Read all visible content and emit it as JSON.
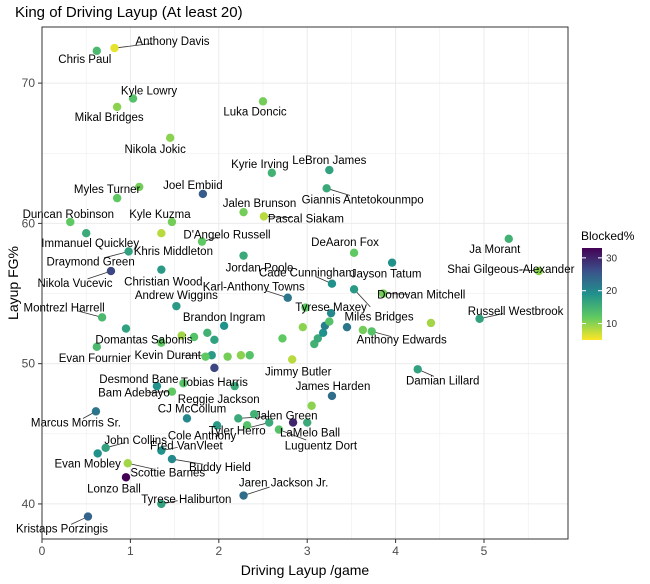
{
  "chart_data": {
    "type": "scatter",
    "title": "King of Driving Layup (At least 20)",
    "xlabel": "Driving Layup /game",
    "ylabel": "Layup FG%",
    "xlim": [
      0,
      5.95
    ],
    "ylim": [
      37.5,
      74
    ],
    "xticks": [
      0,
      1,
      2,
      3,
      4,
      5
    ],
    "yticks": [
      40,
      50,
      60,
      70
    ],
    "grid": true,
    "legend": {
      "title": "Blocked%",
      "position": "right",
      "range": [
        5,
        33
      ],
      "ticks": [
        10,
        20,
        30
      ],
      "colormap": "viridis-reversed"
    },
    "points": [
      {
        "name": "Anthony Davis",
        "x": 0.82,
        "y": 72.5,
        "blocked": 6,
        "label_dx": 58,
        "label_dy": -7
      },
      {
        "name": "Chris Paul",
        "x": 0.62,
        "y": 72.3,
        "blocked": 14,
        "label_dx": -12,
        "label_dy": 8
      },
      {
        "name": "Kyle Lowry",
        "x": 1.03,
        "y": 68.9,
        "blocked": 13,
        "label_dx": 16,
        "label_dy": -8
      },
      {
        "name": "Mikal Bridges",
        "x": 0.85,
        "y": 68.3,
        "blocked": 10,
        "label_dx": -8,
        "label_dy": 10
      },
      {
        "name": "Luka Doncic",
        "x": 2.5,
        "y": 68.7,
        "blocked": 11,
        "label_dx": -8,
        "label_dy": 10
      },
      {
        "name": "Nikola Jokic",
        "x": 1.45,
        "y": 66.1,
        "blocked": 10,
        "label_dx": -15,
        "label_dy": 11
      },
      {
        "name": "Kyrie Irving",
        "x": 2.6,
        "y": 63.6,
        "blocked": 15,
        "label_dx": -12,
        "label_dy": -9
      },
      {
        "name": "LeBron James",
        "x": 3.25,
        "y": 63.8,
        "blocked": 17,
        "label_dx": 0,
        "label_dy": -10
      },
      {
        "name": "Giannis Antetokounmpo",
        "x": 3.22,
        "y": 62.5,
        "blocked": 16,
        "label_dx": 36,
        "label_dy": 11
      },
      {
        "name": "Myles Turner",
        "x": 0.85,
        "y": 61.8,
        "blocked": 12,
        "label_dx": -10,
        "label_dy": -9
      },
      {
        "name": "Joel Embiid",
        "x": 1.82,
        "y": 62.1,
        "blocked": 25,
        "label_dx": -10,
        "label_dy": -9
      },
      {
        "name": "Jalen Brunson",
        "x": 2.28,
        "y": 60.8,
        "blocked": 11,
        "label_dx": 16,
        "label_dy": -9
      },
      {
        "name": "Pascal Siakam",
        "x": 2.51,
        "y": 60.5,
        "blocked": 8,
        "label_dx": 42,
        "label_dy": 2
      },
      {
        "name": "Duncan Robinson",
        "x": 0.32,
        "y": 60.1,
        "blocked": 12,
        "label_dx": -2,
        "label_dy": -8
      },
      {
        "name": "Kyle Kuzma",
        "x": 1.47,
        "y": 60.1,
        "blocked": 11,
        "label_dx": -12,
        "label_dy": -8
      },
      {
        "name": "Khris Middleton",
        "x": 1.35,
        "y": 59.3,
        "blocked": 8,
        "label_dx": 12,
        "label_dy": 18
      },
      {
        "name": "D'Angelo Russell",
        "x": 1.81,
        "y": 58.7,
        "blocked": 12,
        "label_dx": 25,
        "label_dy": -7
      },
      {
        "name": "Immanuel Quickley",
        "x": 0.5,
        "y": 59.3,
        "blocked": 16,
        "label_dx": 4,
        "label_dy": 10
      },
      {
        "name": "Jordan Poole",
        "x": 2.28,
        "y": 57.7,
        "blocked": 16,
        "label_dx": 16,
        "label_dy": 12
      },
      {
        "name": "DeAaron Fox",
        "x": 3.53,
        "y": 57.9,
        "blocked": 12,
        "label_dx": -9,
        "label_dy": -11
      },
      {
        "name": "Ja Morant",
        "x": 5.28,
        "y": 58.9,
        "blocked": 15,
        "label_dx": -14,
        "label_dy": 10
      },
      {
        "name": "Draymond Green",
        "x": 0.98,
        "y": 58.0,
        "blocked": 17,
        "label_dx": -38,
        "label_dy": 10
      },
      {
        "name": "Nikola Vucevic",
        "x": 0.78,
        "y": 56.6,
        "blocked": 27,
        "label_dx": -36,
        "label_dy": 12
      },
      {
        "name": "Christian Wood",
        "x": 1.35,
        "y": 56.7,
        "blocked": 18,
        "label_dx": 2,
        "label_dy": 12
      },
      {
        "name": "Cade Cunningham",
        "x": 3.28,
        "y": 55.7,
        "blocked": 19,
        "label_dx": -25,
        "label_dy": -11
      },
      {
        "name": "Jayson Tatum",
        "x": 3.96,
        "y": 57.2,
        "blocked": 19,
        "label_dx": -6,
        "label_dy": 11
      },
      {
        "name": "Shai Gilgeous-Alexander",
        "x": 5.62,
        "y": 56.6,
        "blocked": 10,
        "label_dx": -28,
        "label_dy": -2
      },
      {
        "name": "Karl-Anthony Towns",
        "x": 2.78,
        "y": 54.7,
        "blocked": 22,
        "label_dx": -34,
        "label_dy": -11
      },
      {
        "name": "Andrew Wiggins",
        "x": 1.52,
        "y": 54.1,
        "blocked": 18,
        "label_dx": 0,
        "label_dy": -11
      },
      {
        "name": "Donovan Mitchell",
        "x": 3.86,
        "y": 55.0,
        "blocked": 11,
        "label_dx": 38,
        "label_dy": 1
      },
      {
        "name": "Miles Bridges",
        "x": 3.53,
        "y": 55.3,
        "blocked": 18,
        "label_dx": 25,
        "label_dy": 27
      },
      {
        "name": "Tyrese Maxey",
        "x": 3.27,
        "y": 53.6,
        "blocked": 20,
        "label_dx": 0,
        "label_dy": -6
      },
      {
        "name": "Montrezl Harrell",
        "x": 0.68,
        "y": 53.3,
        "blocked": 14,
        "label_dx": -38,
        "label_dy": -10
      },
      {
        "name": "Russell Westbrook",
        "x": 4.95,
        "y": 53.2,
        "blocked": 17,
        "label_dx": 36,
        "label_dy": -8
      },
      {
        "name": "Brandon Ingram",
        "x": 2.06,
        "y": 52.7,
        "blocked": 19,
        "label_dx": 0,
        "label_dy": -9
      },
      {
        "name": "Anthony Edwards",
        "x": 3.73,
        "y": 52.3,
        "blocked": 13,
        "label_dx": 30,
        "label_dy": 8
      },
      {
        "name": "Domantas Sabonis",
        "x": 0.95,
        "y": 52.5,
        "blocked": 17,
        "label_dx": 18,
        "label_dy": 11
      },
      {
        "name": "Evan Fournier",
        "x": 0.62,
        "y": 51.2,
        "blocked": 14,
        "label_dx": -2,
        "label_dy": 11
      },
      {
        "name": "Kevin Durant",
        "x": 1.92,
        "y": 50.6,
        "blocked": 18,
        "label_dx": -44,
        "label_dy": 0
      },
      {
        "name": "Jimmy Butler",
        "x": 2.83,
        "y": 50.3,
        "blocked": 8,
        "label_dx": 6,
        "label_dy": 12
      },
      {
        "name": "Tobias Harris",
        "x": 1.95,
        "y": 49.7,
        "blocked": 27,
        "label_dx": 0,
        "label_dy": 14
      },
      {
        "name": "Damian Lillard",
        "x": 4.25,
        "y": 49.6,
        "blocked": 17,
        "label_dx": 25,
        "label_dy": 11
      },
      {
        "name": "Desmond Bane",
        "x": 1.3,
        "y": 48.4,
        "blocked": 19,
        "label_dx": -18,
        "label_dy": -7
      },
      {
        "name": "Bam Adebayo",
        "x": 1.47,
        "y": 48.0,
        "blocked": 12,
        "label_dx": -38,
        "label_dy": 1
      },
      {
        "name": "Reggie Jackson",
        "x": 2.18,
        "y": 48.4,
        "blocked": 16,
        "label_dx": -16,
        "label_dy": 13
      },
      {
        "name": "James Harden",
        "x": 3.28,
        "y": 47.7,
        "blocked": 23,
        "label_dx": 1,
        "label_dy": -10
      },
      {
        "name": "Marcus Morris Sr.",
        "x": 0.61,
        "y": 46.6,
        "blocked": 22,
        "label_dx": -20,
        "label_dy": 11
      },
      {
        "name": "CJ McCollum",
        "x": 1.64,
        "y": 46.1,
        "blocked": 20,
        "label_dx": 5,
        "label_dy": -10
      },
      {
        "name": "Jalen Green",
        "x": 2.22,
        "y": 46.1,
        "blocked": 16,
        "label_dx": 48,
        "label_dy": -3
      },
      {
        "name": "Cole Anthony",
        "x": 1.98,
        "y": 45.6,
        "blocked": 18,
        "label_dx": -15,
        "label_dy": 10
      },
      {
        "name": "Tyler Herro",
        "x": 2.57,
        "y": 45.8,
        "blocked": 16,
        "label_dx": -32,
        "label_dy": 8
      },
      {
        "name": "LaMelo Ball",
        "x": 2.84,
        "y": 45.8,
        "blocked": 30,
        "label_dx": 17,
        "label_dy": 10
      },
      {
        "name": "Luguentz Dort",
        "x": 2.68,
        "y": 45.3,
        "blocked": 13,
        "label_dx": 42,
        "label_dy": 16
      },
      {
        "name": "John Collins",
        "x": 0.72,
        "y": 44.0,
        "blocked": 17,
        "label_dx": 30,
        "label_dy": -8
      },
      {
        "name": "Fred VanVleet",
        "x": 1.35,
        "y": 43.8,
        "blocked": 19,
        "label_dx": 25,
        "label_dy": -5
      },
      {
        "name": "Evan Mobley",
        "x": 0.63,
        "y": 43.6,
        "blocked": 19,
        "label_dx": -10,
        "label_dy": 10
      },
      {
        "name": "Buddy Hield",
        "x": 1.47,
        "y": 43.2,
        "blocked": 20,
        "label_dx": 48,
        "label_dy": 8
      },
      {
        "name": "Scottie Barnes",
        "x": 0.97,
        "y": 42.9,
        "blocked": 9,
        "label_dx": 40,
        "label_dy": 9
      },
      {
        "name": "Lonzo Ball",
        "x": 0.95,
        "y": 41.9,
        "blocked": 33,
        "label_dx": -12,
        "label_dy": 11
      },
      {
        "name": "Jaren Jackson Jr.",
        "x": 2.28,
        "y": 40.6,
        "blocked": 23,
        "label_dx": 40,
        "label_dy": -13
      },
      {
        "name": "Tyrese Haliburton",
        "x": 1.35,
        "y": 40.0,
        "blocked": 17,
        "label_dx": 25,
        "label_dy": -5
      },
      {
        "name": "Kristaps Porzingis",
        "x": 0.52,
        "y": 39.1,
        "blocked": 24,
        "label_dx": -26,
        "label_dy": 12
      },
      {
        "name": "",
        "x": 1.35,
        "y": 51.5,
        "blocked": 12
      },
      {
        "name": "",
        "x": 1.58,
        "y": 52.0,
        "blocked": 9
      },
      {
        "name": "",
        "x": 1.72,
        "y": 51.9,
        "blocked": 13
      },
      {
        "name": "",
        "x": 1.87,
        "y": 52.2,
        "blocked": 15
      },
      {
        "name": "",
        "x": 1.95,
        "y": 51.7,
        "blocked": 17
      },
      {
        "name": "",
        "x": 1.85,
        "y": 50.5,
        "blocked": 12
      },
      {
        "name": "",
        "x": 2.1,
        "y": 50.5,
        "blocked": 11
      },
      {
        "name": "",
        "x": 2.25,
        "y": 50.6,
        "blocked": 10
      },
      {
        "name": "",
        "x": 2.35,
        "y": 50.6,
        "blocked": 13
      },
      {
        "name": "",
        "x": 2.72,
        "y": 51.8,
        "blocked": 12
      },
      {
        "name": "",
        "x": 2.95,
        "y": 52.6,
        "blocked": 10
      },
      {
        "name": "",
        "x": 3.08,
        "y": 51.4,
        "blocked": 15
      },
      {
        "name": "",
        "x": 3.12,
        "y": 51.8,
        "blocked": 16
      },
      {
        "name": "",
        "x": 3.18,
        "y": 52.2,
        "blocked": 19
      },
      {
        "name": "",
        "x": 3.2,
        "y": 52.7,
        "blocked": 21
      },
      {
        "name": "",
        "x": 3.25,
        "y": 53.0,
        "blocked": 13
      },
      {
        "name": "",
        "x": 3.45,
        "y": 52.6,
        "blocked": 22
      },
      {
        "name": "",
        "x": 3.63,
        "y": 52.4,
        "blocked": 11
      },
      {
        "name": "",
        "x": 4.4,
        "y": 52.9,
        "blocked": 9
      },
      {
        "name": "",
        "x": 2.98,
        "y": 54.0,
        "blocked": 12
      },
      {
        "name": "",
        "x": 3.05,
        "y": 47.0,
        "blocked": 10
      },
      {
        "name": "",
        "x": 2.4,
        "y": 46.4,
        "blocked": 15
      },
      {
        "name": "",
        "x": 2.32,
        "y": 45.6,
        "blocked": 13
      },
      {
        "name": "",
        "x": 3.0,
        "y": 45.8,
        "blocked": 16
      },
      {
        "name": "",
        "x": 1.6,
        "y": 48.6,
        "blocked": 13
      },
      {
        "name": "",
        "x": 1.1,
        "y": 62.6,
        "blocked": 11
      }
    ]
  }
}
